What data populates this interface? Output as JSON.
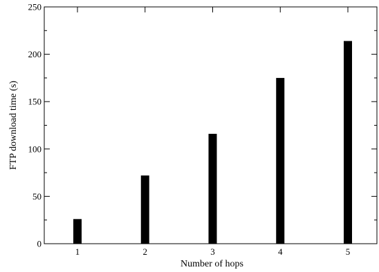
{
  "chart_data": {
    "type": "bar",
    "categories": [
      "1",
      "2",
      "3",
      "4",
      "5"
    ],
    "values": [
      26,
      72,
      116,
      175,
      214
    ],
    "xlabel": "Number of hops",
    "ylabel": "FTP download time (s)",
    "ylim": [
      0,
      250
    ],
    "yticks": [
      0,
      50,
      100,
      150,
      200,
      250
    ],
    "grid": false,
    "legend": "none",
    "bar_color": "#000000"
  }
}
